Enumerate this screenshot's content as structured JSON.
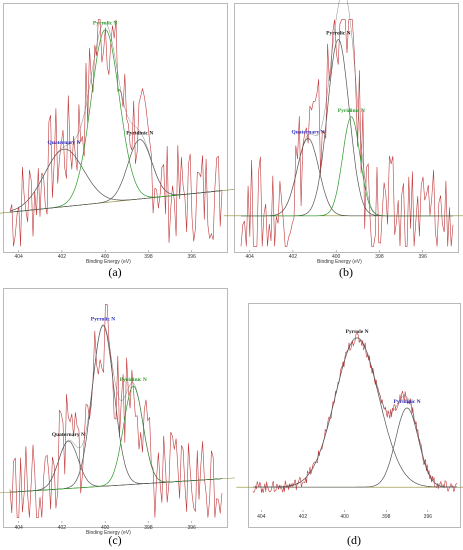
{
  "xlabel": "Binding Energy (eV)",
  "x_ticks": [
    404,
    402,
    400,
    398,
    396
  ],
  "panel_labels": [
    "(a)",
    "(b)",
    "(c)",
    "(d)"
  ],
  "colors": {
    "raw": "#c0393b",
    "envelope": "#555555",
    "baseline": "#8a8a2a",
    "blue_label": "#2a2ab8",
    "green_label": "#2a9a2a",
    "dark_label": "#222222"
  },
  "chart_data": [
    {
      "type": "line",
      "title": "",
      "xlabel": "Binding Energy (eV)",
      "ylabel": "",
      "xlim": [
        404.4,
        394.6
      ],
      "ylim": [
        -0.15,
        1.15
      ],
      "x_reversed": true,
      "noise": 0.28,
      "baseline": [
        0.06,
        0.18
      ],
      "peaks": [
        {
          "name": "Quaternary N",
          "center": 401.9,
          "height": 0.32,
          "width": 0.9,
          "label_color": "#2a2ab8",
          "curve_color": "#555555"
        },
        {
          "name": "Pyrrolic N",
          "center": 400.0,
          "height": 0.96,
          "width": 0.65,
          "label_color": "#2a9a2a",
          "curve_color": "#2a9a2a"
        },
        {
          "name": "Pyridinic N",
          "center": 398.4,
          "height": 0.33,
          "width": 0.55,
          "label_color": "#222222",
          "curve_color": "#555555"
        }
      ]
    },
    {
      "type": "line",
      "title": "",
      "xlabel": "Binding Energy (eV)",
      "ylabel": "",
      "xlim": [
        404.4,
        394.6
      ],
      "ylim": [
        -0.15,
        1.15
      ],
      "x_reversed": true,
      "noise": 0.34,
      "baseline": [
        0.04,
        0.04
      ],
      "peaks": [
        {
          "name": "Quaternary N",
          "center": 401.3,
          "height": 0.43,
          "width": 0.5,
          "label_color": "#2a2ab8",
          "curve_color": "#555555"
        },
        {
          "name": "Pyrrolic N",
          "center": 399.9,
          "height": 0.98,
          "width": 0.5,
          "label_color": "#222222",
          "curve_color": "#555555"
        },
        {
          "name": "Pyridinic N",
          "center": 399.3,
          "height": 0.55,
          "width": 0.4,
          "label_color": "#2a9a2a",
          "curve_color": "#2a9a2a"
        }
      ]
    },
    {
      "type": "line",
      "title": "",
      "xlabel": "Binding Energy (eV)",
      "ylabel": "",
      "xlim": [
        404.4,
        394.6
      ],
      "ylim": [
        -0.15,
        1.15
      ],
      "x_reversed": true,
      "noise": 0.3,
      "baseline": [
        0.02,
        0.1
      ],
      "peaks": [
        {
          "name": "Quaternary N",
          "center": 401.7,
          "height": 0.28,
          "width": 0.45,
          "label_color": "#222222",
          "curve_color": "#555555"
        },
        {
          "name": "Pyrrolic N",
          "center": 400.1,
          "height": 0.95,
          "width": 0.5,
          "label_color": "#2a2ab8",
          "curve_color": "#555555"
        },
        {
          "name": "Pyridinic N",
          "center": 398.7,
          "height": 0.58,
          "width": 0.45,
          "label_color": "#2a9a2a",
          "curve_color": "#2a9a2a"
        }
      ]
    },
    {
      "type": "line",
      "title": "",
      "xlabel": "Binding Energy (eV)",
      "ylabel": "",
      "xlim": [
        404.4,
        394.6
      ],
      "ylim": [
        -0.15,
        1.15
      ],
      "x_reversed": true,
      "noise": 0.04,
      "baseline": [
        0.0,
        0.0
      ],
      "peaks": [
        {
          "name": "Pyrrole N",
          "center": 399.4,
          "height": 0.98,
          "width": 1.05,
          "label_color": "#222222",
          "curve_color": "#555555"
        },
        {
          "name": "Pyridinic N",
          "center": 397.0,
          "height": 0.52,
          "width": 0.55,
          "label_color": "#2a2ab8",
          "curve_color": "#555555"
        }
      ]
    }
  ]
}
